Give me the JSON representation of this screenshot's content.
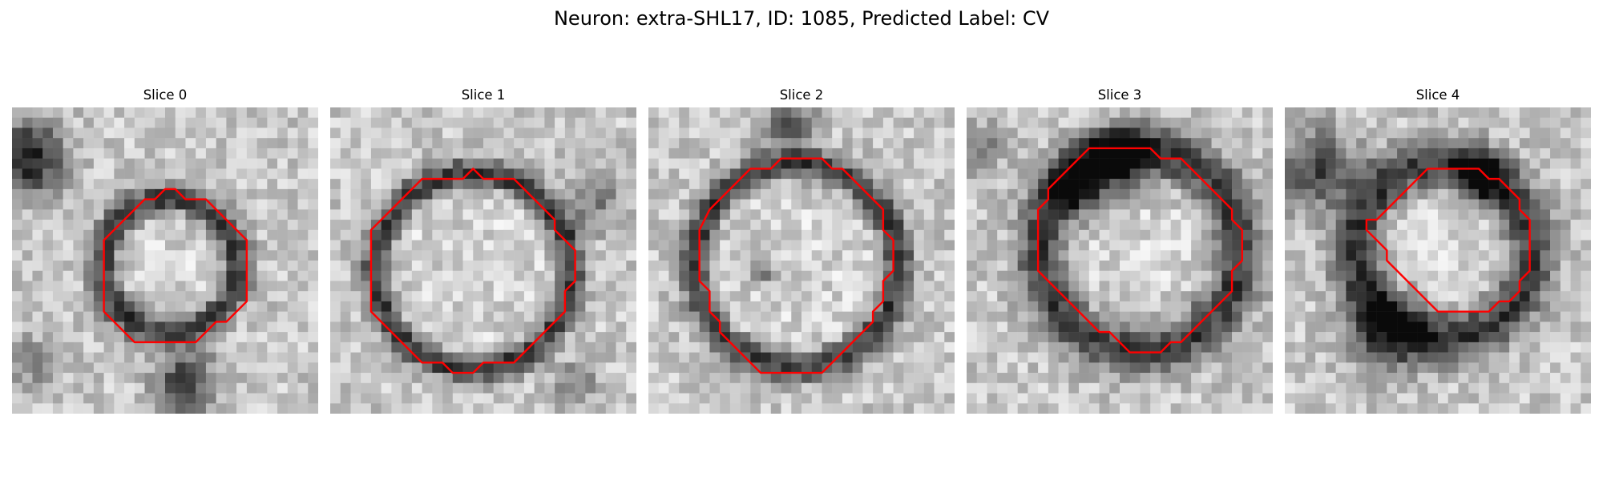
{
  "figure": {
    "title": "Neuron: extra-SHL17, ID: 1085, Predicted Label: CV",
    "contour_color": "#ff0000",
    "colormap": "gray"
  },
  "slices": [
    {
      "title": "Slice 0"
    },
    {
      "title": "Slice 1"
    },
    {
      "title": "Slice 2"
    },
    {
      "title": "Slice 3"
    },
    {
      "title": "Slice 4"
    }
  ]
}
